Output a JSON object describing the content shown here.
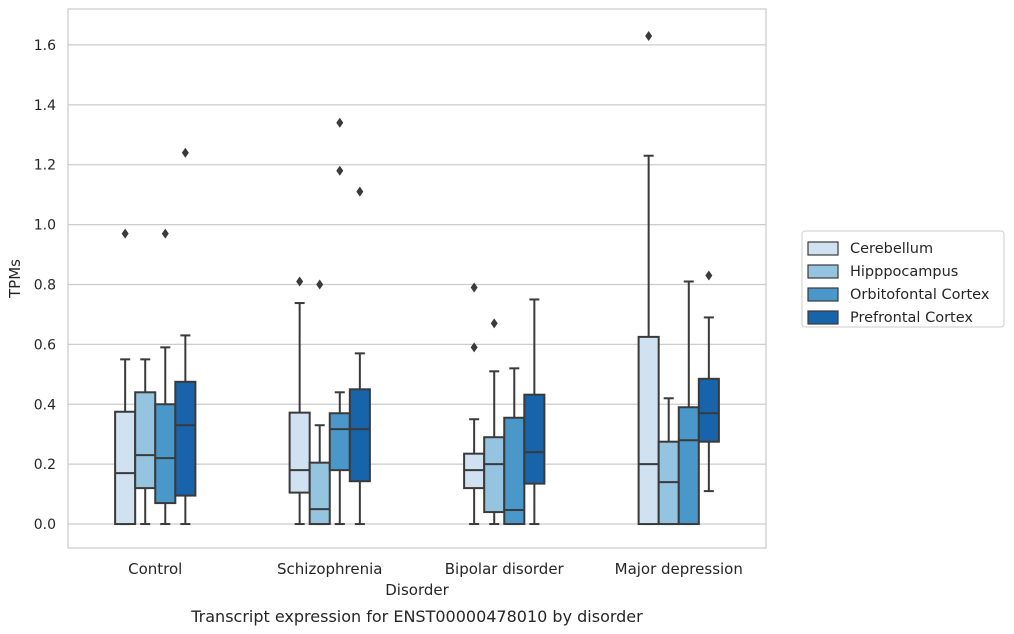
{
  "chart_data": {
    "type": "box",
    "title": "",
    "caption": "Transcript expression for ENST00000478010 by disorder",
    "xlabel": "Disorder",
    "ylabel": "TPMs",
    "ylim": [
      -0.08,
      1.72
    ],
    "yticks": [
      "0.0",
      "0.2",
      "0.4",
      "0.6",
      "0.8",
      "1.0",
      "1.2",
      "1.4",
      "1.6"
    ],
    "grid": true,
    "legend_position": "right",
    "categories": [
      "Control",
      "Schizophrenia",
      "Bipolar disorder",
      "Major depression"
    ],
    "series": [
      {
        "name": "Cerebellum",
        "color": "#d0e1f2",
        "boxes": [
          {
            "whislo": 0.0,
            "q1": 0.0,
            "med": 0.17,
            "q3": 0.375,
            "whishi": 0.55,
            "fliers": [
              0.97
            ]
          },
          {
            "whislo": 0.0,
            "q1": 0.105,
            "med": 0.18,
            "q3": 0.372,
            "whishi": 0.738,
            "fliers": [
              0.81
            ]
          },
          {
            "whislo": 0.0,
            "q1": 0.12,
            "med": 0.18,
            "q3": 0.235,
            "whishi": 0.35,
            "fliers": [
              0.59,
              0.79
            ]
          },
          {
            "whislo": 0.0,
            "q1": 0.0,
            "med": 0.2,
            "q3": 0.625,
            "whishi": 1.23,
            "fliers": [
              1.63
            ]
          }
        ]
      },
      {
        "name": "Hipppocampus",
        "color": "#94c4df",
        "boxes": [
          {
            "whislo": 0.0,
            "q1": 0.12,
            "med": 0.23,
            "q3": 0.44,
            "whishi": 0.55,
            "fliers": []
          },
          {
            "whislo": 0.0,
            "q1": 0.0,
            "med": 0.05,
            "q3": 0.205,
            "whishi": 0.33,
            "fliers": [
              0.8
            ]
          },
          {
            "whislo": 0.0,
            "q1": 0.04,
            "med": 0.2,
            "q3": 0.29,
            "whishi": 0.51,
            "fliers": [
              0.67
            ]
          },
          {
            "whislo": 0.0,
            "q1": 0.0,
            "med": 0.14,
            "q3": 0.275,
            "whishi": 0.42,
            "fliers": []
          }
        ]
      },
      {
        "name": "Orbitofontal Cortex",
        "color": "#4a98c9",
        "boxes": [
          {
            "whislo": 0.0,
            "q1": 0.07,
            "med": 0.22,
            "q3": 0.4,
            "whishi": 0.59,
            "fliers": [
              0.97
            ]
          },
          {
            "whislo": 0.0,
            "q1": 0.18,
            "med": 0.317,
            "q3": 0.37,
            "whishi": 0.44,
            "fliers": [
              1.18,
              1.34
            ]
          },
          {
            "whislo": 0.0,
            "q1": 0.0,
            "med": 0.047,
            "q3": 0.355,
            "whishi": 0.52,
            "fliers": []
          },
          {
            "whislo": 0.0,
            "q1": 0.0,
            "med": 0.28,
            "q3": 0.39,
            "whishi": 0.81,
            "fliers": []
          }
        ]
      },
      {
        "name": "Prefrontal Cortex",
        "color": "#1764ab",
        "boxes": [
          {
            "whislo": 0.0,
            "q1": 0.095,
            "med": 0.33,
            "q3": 0.475,
            "whishi": 0.63,
            "fliers": [
              1.24
            ]
          },
          {
            "whislo": 0.0,
            "q1": 0.143,
            "med": 0.317,
            "q3": 0.45,
            "whishi": 0.57,
            "fliers": [
              1.11
            ]
          },
          {
            "whislo": 0.0,
            "q1": 0.135,
            "med": 0.24,
            "q3": 0.432,
            "whishi": 0.75,
            "fliers": []
          },
          {
            "whislo": 0.11,
            "q1": 0.275,
            "med": 0.37,
            "q3": 0.485,
            "whishi": 0.69,
            "fliers": [
              0.83
            ]
          }
        ]
      }
    ]
  }
}
